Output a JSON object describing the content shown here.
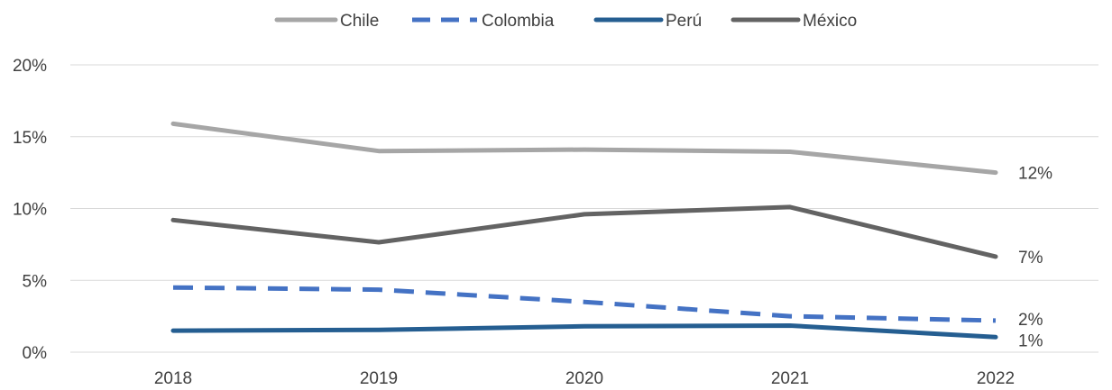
{
  "chart_data": {
    "type": "line",
    "title": "",
    "xlabel": "",
    "ylabel": "",
    "categories": [
      "2018",
      "2019",
      "2020",
      "2021",
      "2022"
    ],
    "ylim": [
      0,
      20
    ],
    "yticks": [
      0,
      5,
      10,
      15,
      20
    ],
    "ytick_labels": [
      "0%",
      "5%",
      "10%",
      "15%",
      "20%"
    ],
    "grid": true,
    "legend_position": "top",
    "series": [
      {
        "name": "Chile",
        "values": [
          15.9,
          14.0,
          14.1,
          13.95,
          12.5
        ],
        "color": "#a6a6a6",
        "dash": "solid",
        "end_label": "12%"
      },
      {
        "name": "Colombia",
        "values": [
          4.5,
          4.35,
          3.5,
          2.5,
          2.2
        ],
        "color": "#4472c4",
        "dash": "dashed",
        "end_label": "2%"
      },
      {
        "name": "Perú",
        "values": [
          1.5,
          1.55,
          1.8,
          1.85,
          1.05
        ],
        "color": "#255e91",
        "dash": "solid",
        "end_label": "1%"
      },
      {
        "name": "México",
        "values": [
          9.2,
          7.65,
          9.6,
          10.1,
          6.65
        ],
        "color": "#636363",
        "dash": "solid",
        "end_label": "7%"
      }
    ]
  }
}
